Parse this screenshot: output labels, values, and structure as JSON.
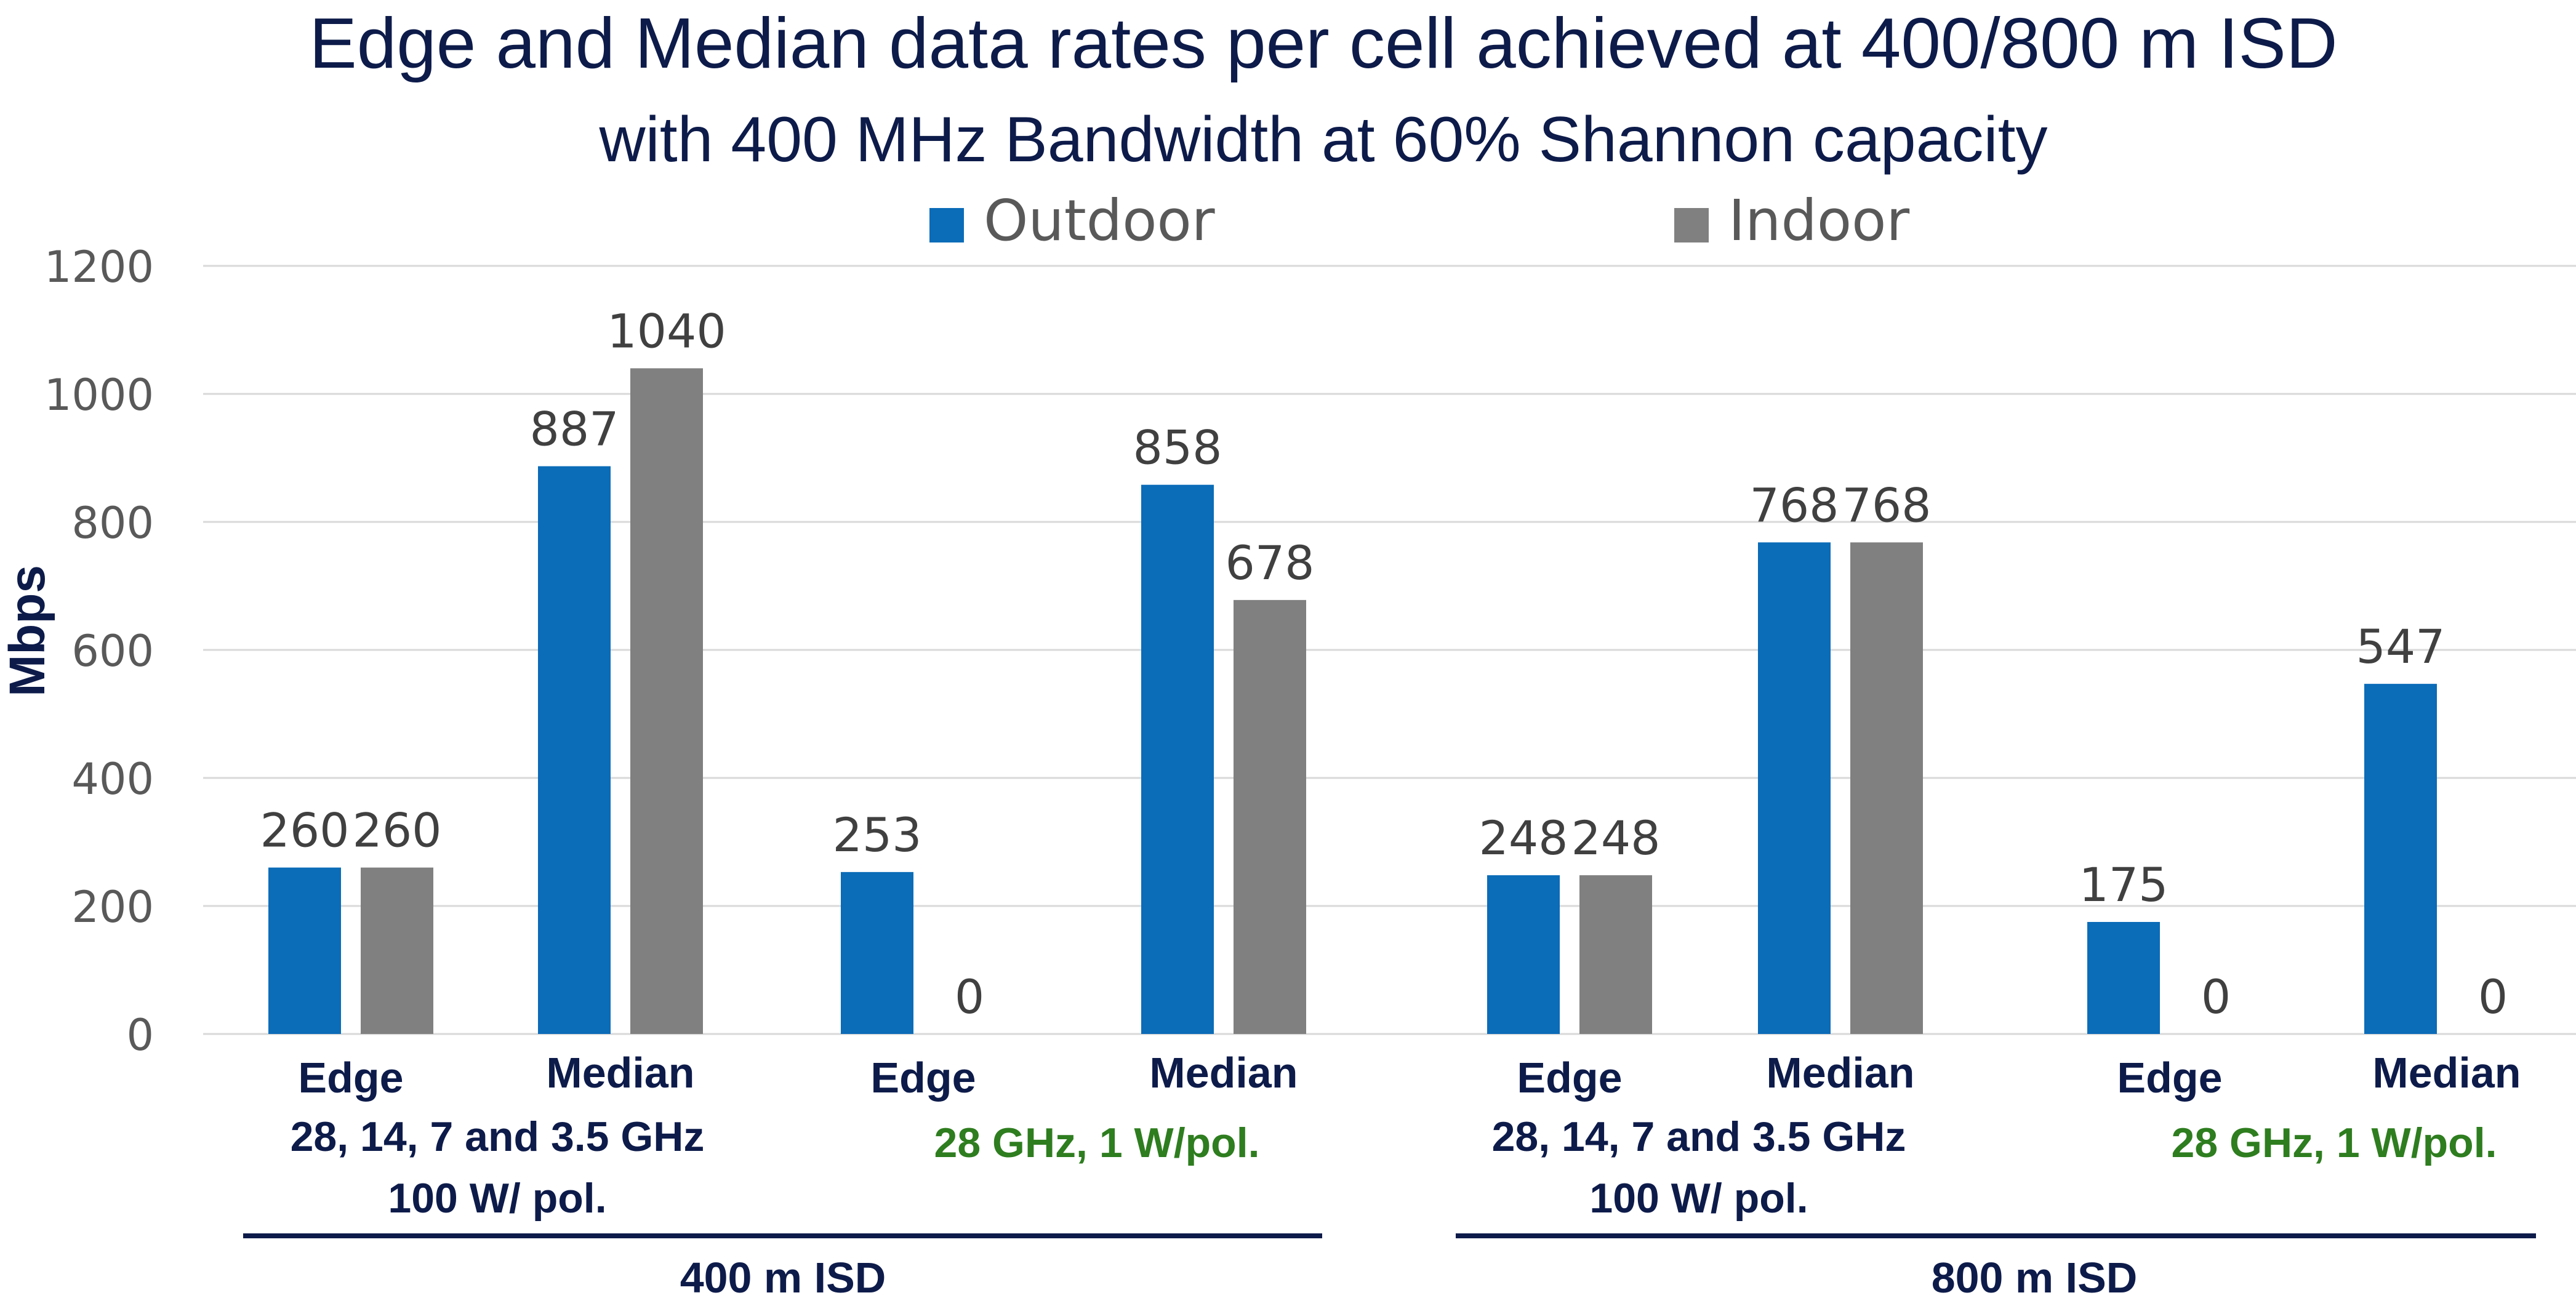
{
  "chart_data": {
    "type": "bar",
    "title": "Edge and Median data rates per cell achieved at 400/800 m ISD",
    "subtitle": "with 400 MHz Bandwidth at 60% Shannon capacity",
    "ylabel": "Mbps",
    "ylim": [
      0,
      1200
    ],
    "yticks": [
      0,
      200,
      400,
      600,
      800,
      1000,
      1200
    ],
    "ytick_labels": [
      "0",
      "200",
      "400",
      "600",
      "800",
      "1000",
      "1200"
    ],
    "grid": true,
    "legend_position": "top",
    "categories": [
      "Edge",
      "Median",
      "Edge",
      "Median",
      "Edge",
      "Median",
      "Edge",
      "Median"
    ],
    "series": [
      {
        "name": "Outdoor",
        "color": "#0b6cb8",
        "values": [
          260,
          887,
          253,
          858,
          248,
          768,
          175,
          547
        ],
        "labels": [
          "260",
          "887",
          "253",
          "858",
          "248",
          "768",
          "175",
          "547"
        ]
      },
      {
        "name": "Indoor",
        "color": "#808080",
        "values": [
          260,
          1040,
          0,
          678,
          248,
          768,
          0,
          0
        ],
        "labels": [
          "260",
          "1040",
          "0",
          "678",
          "248",
          "768",
          "0",
          "0"
        ]
      }
    ],
    "configurations": [
      {
        "lines": [
          "28, 14, 7 and 3.5 GHz",
          "100 W/ pol."
        ],
        "style": "navy"
      },
      {
        "lines": [
          "28 GHz, 1 W/pol."
        ],
        "style": "green"
      },
      {
        "lines": [
          "28, 14, 7 and 3.5 GHz",
          "100 W/ pol."
        ],
        "style": "navy"
      },
      {
        "lines": [
          "28 GHz, 1 W/pol."
        ],
        "style": "green"
      }
    ],
    "groups": [
      "400 m ISD",
      "800 m ISD"
    ]
  }
}
